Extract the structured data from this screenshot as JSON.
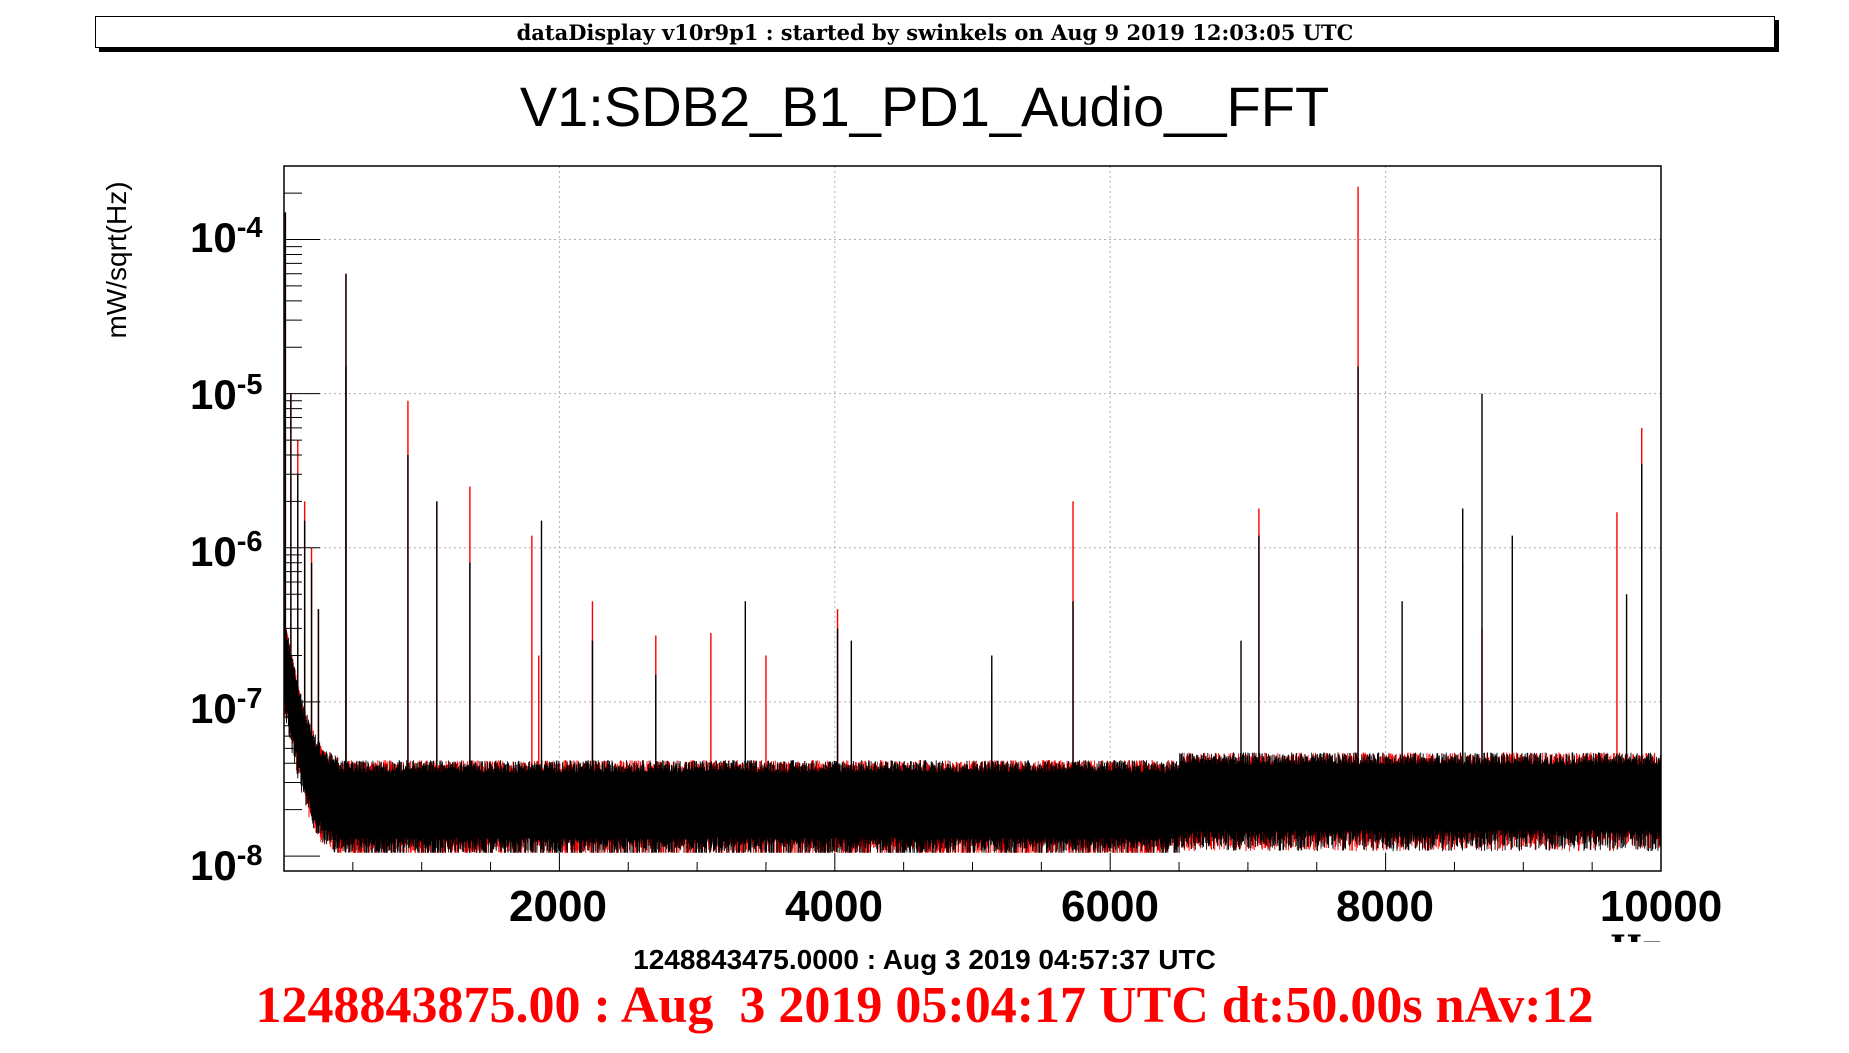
{
  "banner": "dataDisplay v10r9p1 : started by swinkels on Aug  9 2019 12:03:05 UTC",
  "timestamp_ref": "1248843475.0000 : Aug  3 2019 04:57:37 UTC",
  "timestamp_current": "1248843875.00 : Aug  3 2019 05:04:17 UTC dt:50.00s nAv:12",
  "colors": {
    "current": "#ff0000",
    "reference": "#000000",
    "grid": "#b0b0b0"
  },
  "chart_data": {
    "type": "line",
    "title": "V1:SDB2_B1_PD1_Audio__FFT",
    "xlabel": "Hz",
    "ylabel": "mW/sqrt(Hz)",
    "xlim": [
      0,
      10000
    ],
    "ylim": [
      8e-09,
      0.0003
    ],
    "yscale": "log",
    "grid": true,
    "x_ticks": [
      "2000",
      "4000",
      "6000",
      "8000",
      "10000"
    ],
    "y_ticks": [
      {
        "base": "10",
        "exp": "-4"
      },
      {
        "base": "10",
        "exp": "-5"
      },
      {
        "base": "10",
        "exp": "-6"
      },
      {
        "base": "10",
        "exp": "-7"
      },
      {
        "base": "10",
        "exp": "-8"
      }
    ],
    "noise_floor": {
      "low": 1.5e-08,
      "high": 4e-08
    },
    "series": [
      {
        "color": "#ff0000",
        "peaks": [
          [
            10,
            0.00015
          ],
          [
            50,
            1e-05
          ],
          [
            100,
            5e-06
          ],
          [
            150,
            2e-06
          ],
          [
            200,
            1e-06
          ],
          [
            250,
            4e-07
          ],
          [
            450,
            6e-05
          ],
          [
            900,
            9e-06
          ],
          [
            1110,
            2e-06
          ],
          [
            1350,
            2.5e-06
          ],
          [
            1800,
            1.2e-06
          ],
          [
            1850,
            2e-07
          ],
          [
            2240,
            4.5e-07
          ],
          [
            2700,
            2.7e-07
          ],
          [
            3100,
            2.8e-07
          ],
          [
            3500,
            2e-07
          ],
          [
            4020,
            4e-07
          ],
          [
            5140,
            1.5e-07
          ],
          [
            5730,
            2e-06
          ],
          [
            7080,
            1.8e-06
          ],
          [
            7800,
            0.00022
          ],
          [
            8560,
            8e-07
          ],
          [
            8700,
            3e-07
          ],
          [
            9680,
            1.7e-06
          ],
          [
            9860,
            6e-06
          ]
        ]
      },
      {
        "color": "#000000",
        "peaks": [
          [
            10,
            0.00015
          ],
          [
            50,
            1e-05
          ],
          [
            100,
            3e-06
          ],
          [
            150,
            1.5e-06
          ],
          [
            200,
            8e-07
          ],
          [
            250,
            4e-07
          ],
          [
            450,
            6e-05
          ],
          [
            450,
            1.5e-05
          ],
          [
            900,
            4e-06
          ],
          [
            1110,
            2e-06
          ],
          [
            1350,
            8e-07
          ],
          [
            1870,
            1.5e-06
          ],
          [
            2240,
            2.5e-07
          ],
          [
            2700,
            1.5e-07
          ],
          [
            3350,
            4.5e-07
          ],
          [
            4020,
            3e-07
          ],
          [
            4120,
            2.5e-07
          ],
          [
            5140,
            2e-07
          ],
          [
            5730,
            4.5e-07
          ],
          [
            6950,
            2.5e-07
          ],
          [
            7080,
            1.2e-06
          ],
          [
            7800,
            1.5e-05
          ],
          [
            8120,
            4.5e-07
          ],
          [
            8560,
            1.8e-06
          ],
          [
            8700,
            1e-05
          ],
          [
            8920,
            1.2e-06
          ],
          [
            9750,
            5e-07
          ],
          [
            9860,
            3.5e-06
          ]
        ]
      }
    ]
  }
}
